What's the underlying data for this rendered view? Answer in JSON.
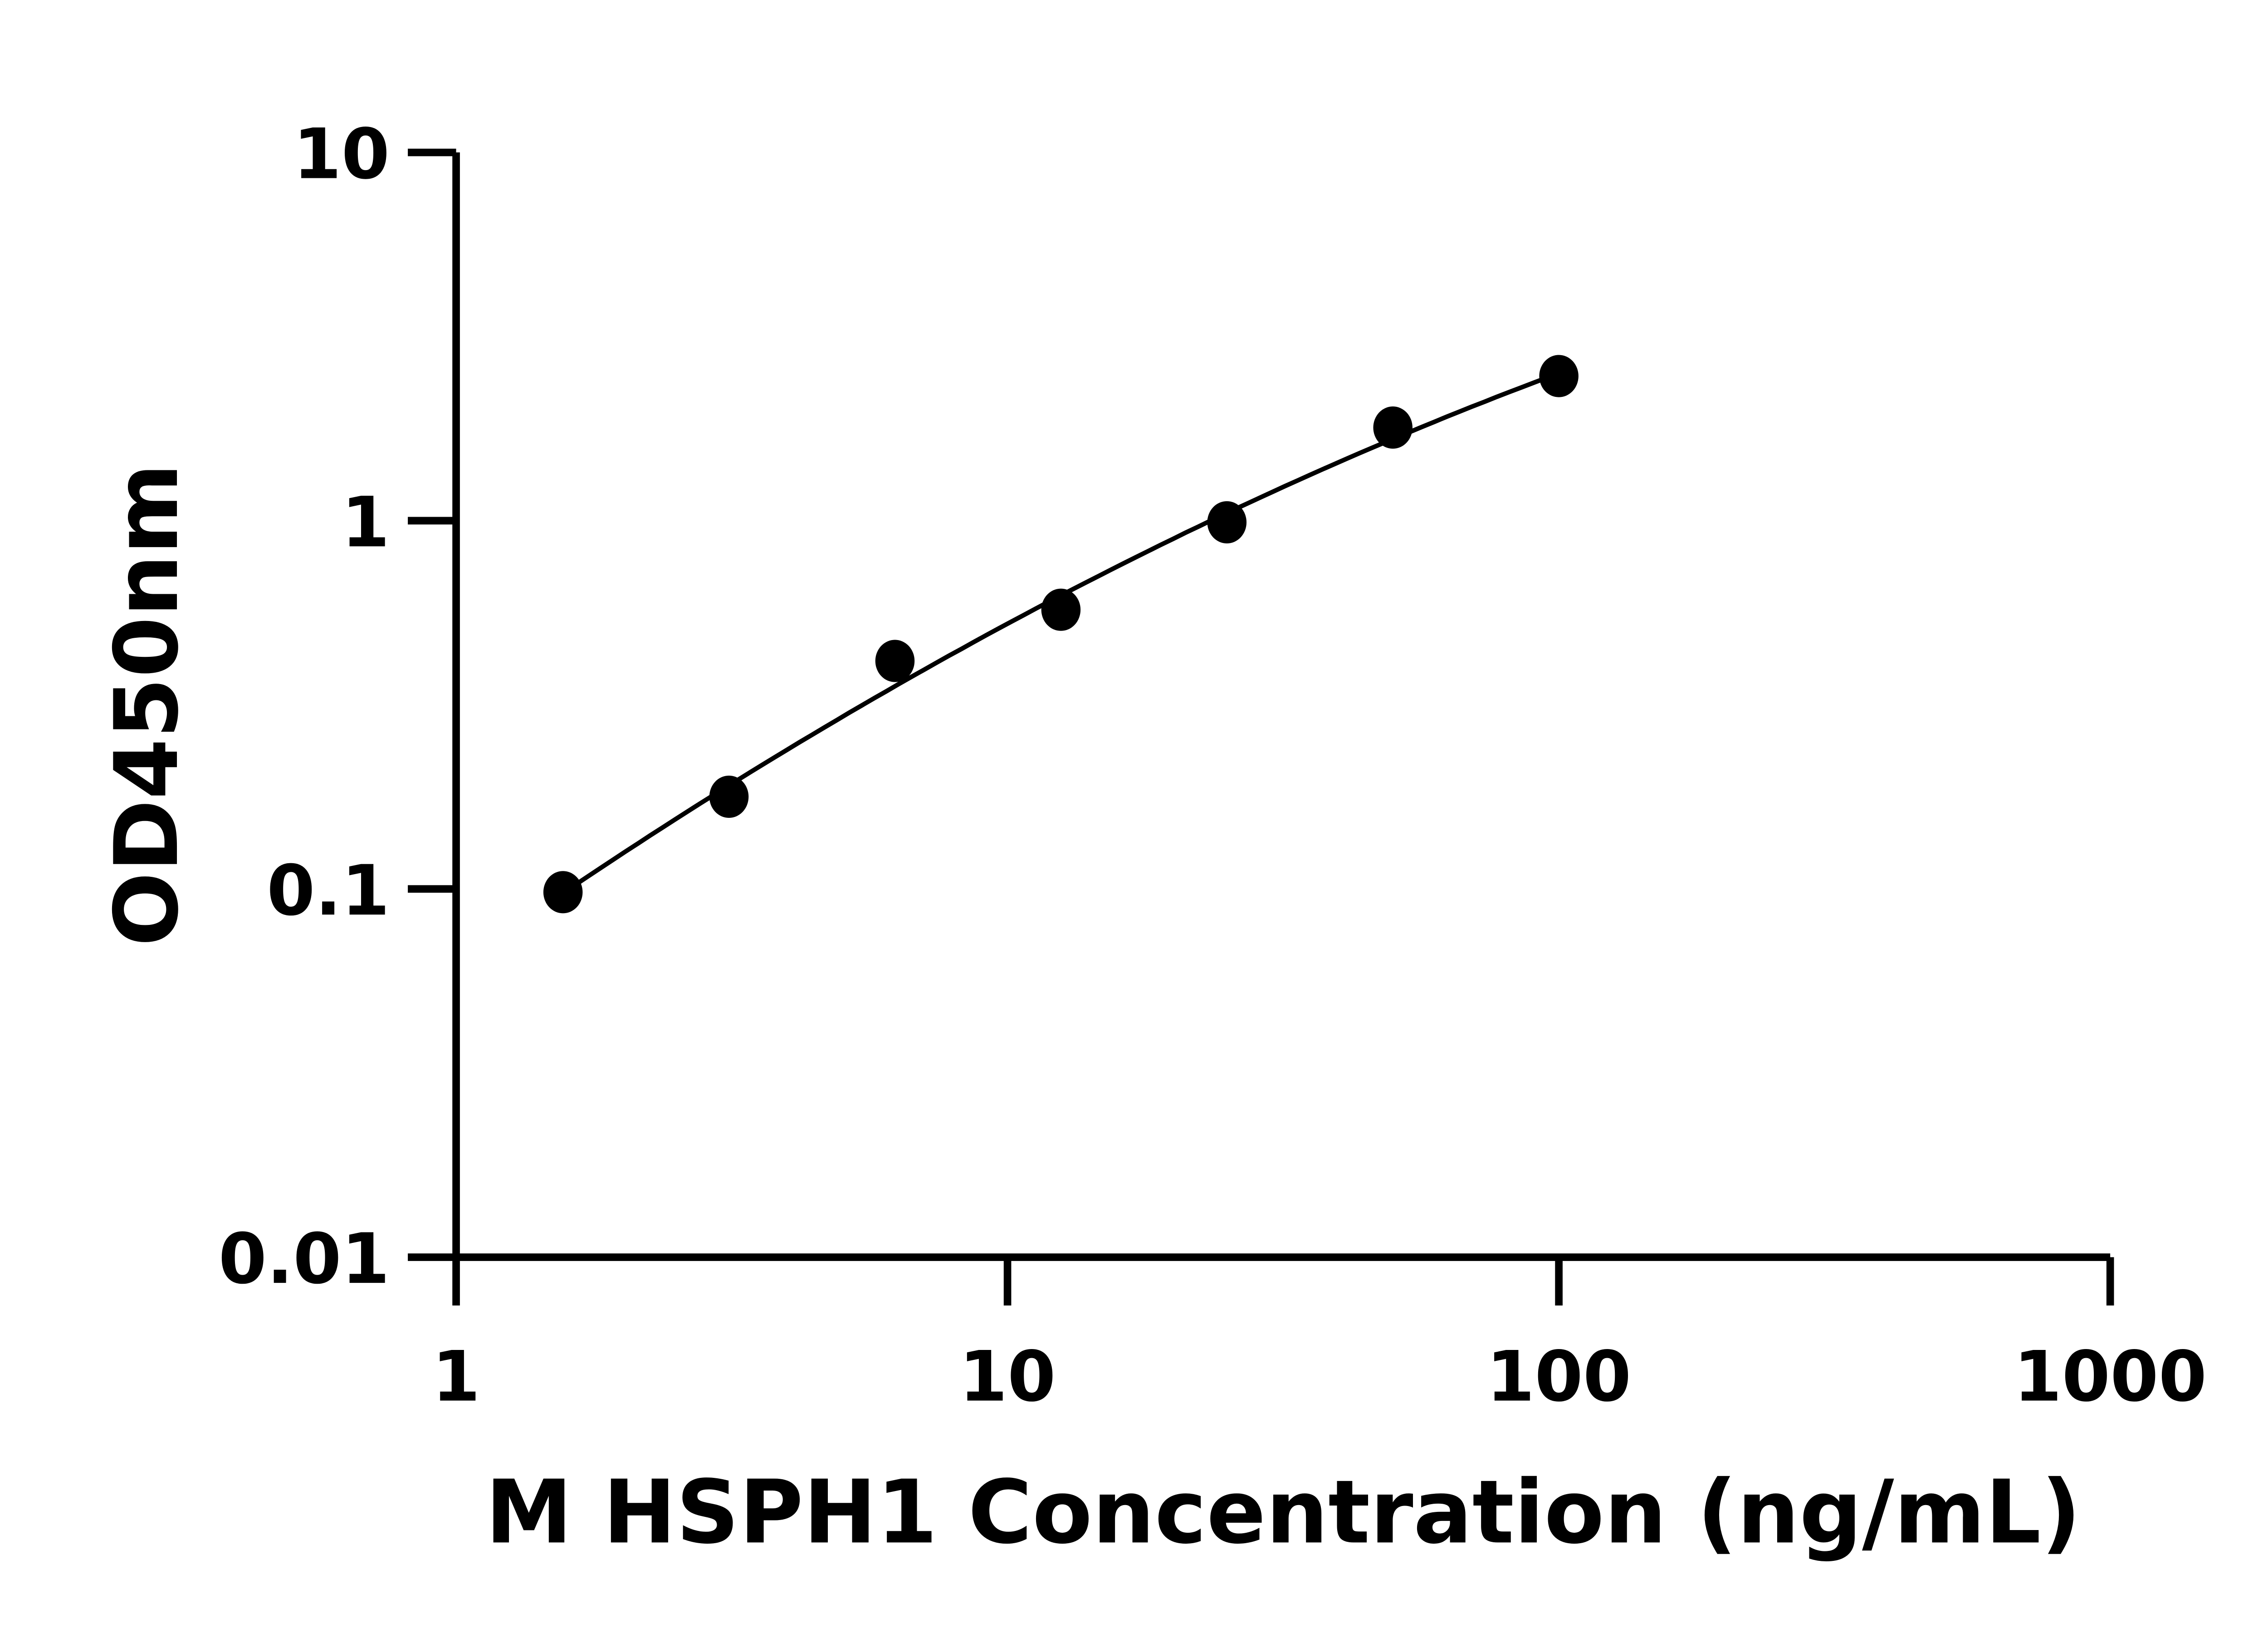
{
  "chart_data": {
    "type": "scatter",
    "xlabel": "M HSPH1 Concentration (ng/mL)",
    "ylabel": "OD450nm",
    "x_scale": "log",
    "y_scale": "log",
    "xlim": [
      1,
      1000
    ],
    "ylim": [
      0.01,
      10
    ],
    "x_ticks": [
      "1",
      "10",
      "100",
      "1000"
    ],
    "y_ticks": [
      "0.01",
      "0.1",
      "1",
      "10"
    ],
    "grid": false,
    "fit_curve": true,
    "colors": {
      "points": "#000000",
      "curve": "#000000",
      "axes": "#000000"
    },
    "points": [
      {
        "x": 1.5625,
        "y": 0.098
      },
      {
        "x": 3.125,
        "y": 0.178
      },
      {
        "x": 6.25,
        "y": 0.416
      },
      {
        "x": 12.5,
        "y": 0.573
      },
      {
        "x": 25,
        "y": 0.99
      },
      {
        "x": 50,
        "y": 1.79
      },
      {
        "x": 100,
        "y": 2.47
      }
    ]
  }
}
